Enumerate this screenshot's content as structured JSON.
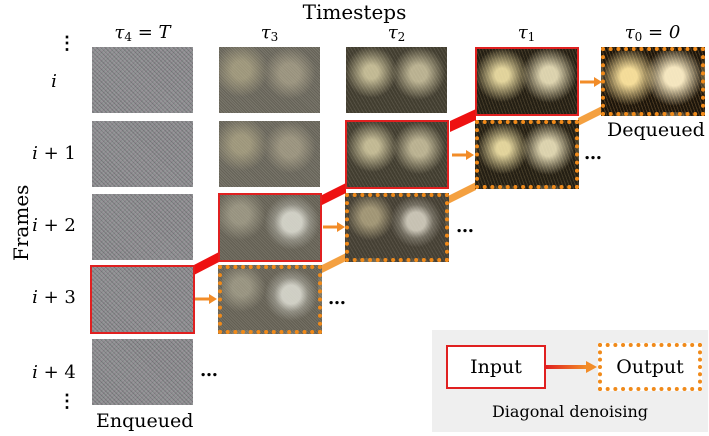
{
  "title": "Timesteps",
  "y_axis_label": "Frames",
  "timesteps": [
    {
      "symbol": "τ",
      "sub": "4",
      "suffix": " = T"
    },
    {
      "symbol": "τ",
      "sub": "3",
      "suffix": ""
    },
    {
      "symbol": "τ",
      "sub": "2",
      "suffix": ""
    },
    {
      "symbol": "τ",
      "sub": "1",
      "suffix": ""
    },
    {
      "symbol": "τ",
      "sub": "0",
      "suffix": " = 0"
    }
  ],
  "frames": [
    {
      "var": "i",
      "rest": ""
    },
    {
      "var": "i",
      "rest": " + 1"
    },
    {
      "var": "i",
      "rest": " + 2"
    },
    {
      "var": "i",
      "rest": " + 3"
    },
    {
      "var": "i",
      "rest": " + 4"
    }
  ],
  "ellipsis": "…",
  "vertical_dots": "⋮",
  "enqueued_label": "Enqueued",
  "dequeued_label": "Dequeued",
  "legend": {
    "input_label": "Input",
    "output_label": "Output",
    "caption": "Diagonal denoising"
  },
  "colors": {
    "input_border": "#e02020",
    "output_border": "#f08a1a",
    "diagonal_band": "#ee1111",
    "arrow": "#f28c28",
    "legend_background": "#efefef"
  }
}
